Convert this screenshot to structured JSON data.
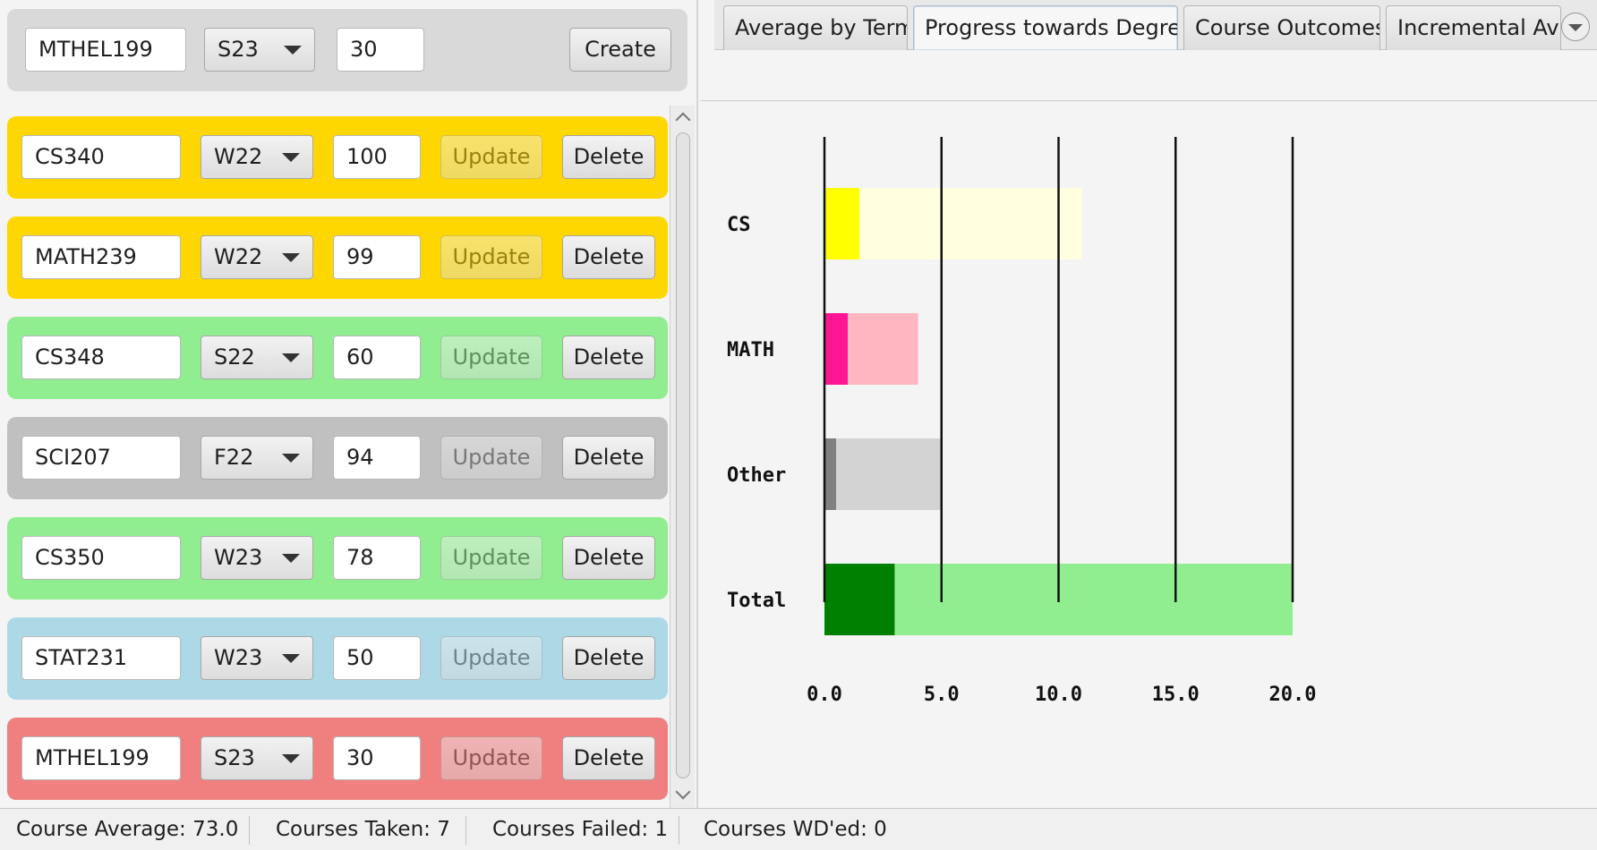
{
  "create_panel": {
    "course_code": "MTHEL199",
    "term": "S23",
    "grade": "30",
    "create_label": "Create"
  },
  "courses": [
    {
      "code": "CS340",
      "term": "W22",
      "grade": "100",
      "color": "#ffd700",
      "update_label": "Update",
      "delete_label": "Delete"
    },
    {
      "code": "MATH239",
      "term": "W22",
      "grade": "99",
      "color": "#ffd700",
      "update_label": "Update",
      "delete_label": "Delete"
    },
    {
      "code": "CS348",
      "term": "S22",
      "grade": "60",
      "color": "#90ee90",
      "update_label": "Update",
      "delete_label": "Delete"
    },
    {
      "code": "SCI207",
      "term": "F22",
      "grade": "94",
      "color": "#c0c0c0",
      "update_label": "Update",
      "delete_label": "Delete"
    },
    {
      "code": "CS350",
      "term": "W23",
      "grade": "78",
      "color": "#90ee90",
      "update_label": "Update",
      "delete_label": "Delete"
    },
    {
      "code": "STAT231",
      "term": "W23",
      "grade": "50",
      "color": "#add8e6",
      "update_label": "Update",
      "delete_label": "Delete"
    },
    {
      "code": "MTHEL199",
      "term": "S23",
      "grade": "30",
      "color": "#f08080",
      "update_label": "Update",
      "delete_label": "Delete"
    }
  ],
  "tabs": [
    {
      "label": "Average by Term",
      "selected": false
    },
    {
      "label": "Progress towards Degree",
      "selected": true
    },
    {
      "label": "Course Outcomes",
      "selected": false
    },
    {
      "label": "Incremental Average",
      "selected": false
    }
  ],
  "chart_data": {
    "type": "bar",
    "orientation": "horizontal",
    "stacked": true,
    "categories": [
      "CS",
      "MATH",
      "Other",
      "Total"
    ],
    "series": [
      {
        "values": [
          1.5,
          1.0,
          0.5,
          3.0
        ],
        "colors": [
          "#ffff00",
          "#ff1493",
          "#808080",
          "#008000"
        ]
      },
      {
        "values": [
          9.5,
          3.0,
          4.5,
          17.0
        ],
        "colors": [
          "#ffffe0",
          "#ffb6c1",
          "#d3d3d3",
          "#90ee90"
        ]
      }
    ],
    "x_ticks": [
      "0.0",
      "5.0",
      "10.0",
      "15.0",
      "20.0"
    ],
    "xlim": [
      0,
      20
    ],
    "grid": true
  },
  "status_bar": {
    "average": "Course Average: 73.0",
    "taken": "Courses Taken: 7",
    "failed": "Courses Failed: 1",
    "withdrawn": "Courses WD'ed: 0"
  }
}
